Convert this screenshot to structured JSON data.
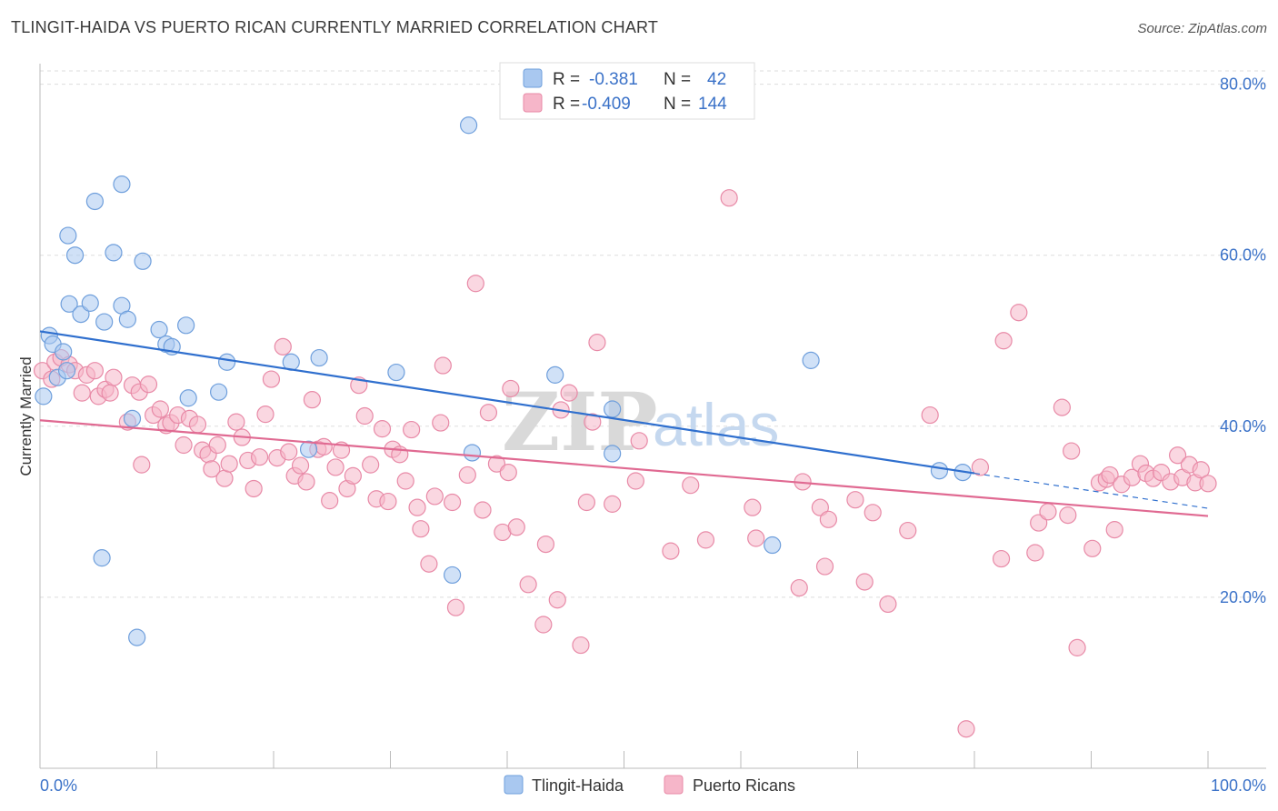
{
  "title": "TLINGIT-HAIDA VS PUERTO RICAN CURRENTLY MARRIED CORRELATION CHART",
  "source": "Source: ZipAtlas.com",
  "colors": {
    "blue_fill": "#a9c8f0",
    "blue_stroke": "#6f9fdc",
    "blue_line": "#2f6fce",
    "pink_fill": "#f6b6c9",
    "pink_stroke": "#e88aa7",
    "pink_line": "#e06a92",
    "accent_text": "#3b72c8",
    "grid": "#dddddd"
  },
  "legend": {
    "rows": [
      {
        "r_label": "R =",
        "r_value": "-0.381",
        "n_label": "N =",
        "n_value": "42"
      },
      {
        "r_label": "R =",
        "r_value": "-0.409",
        "n_label": "N =",
        "n_value": "144"
      }
    ]
  },
  "chart_data": {
    "type": "scatter",
    "title": "TLINGIT-HAIDA VS PUERTO RICAN CURRENTLY MARRIED CORRELATION CHART",
    "xlabel": "",
    "ylabel": "Currently Married",
    "xlim": [
      0,
      100
    ],
    "ylim": [
      0,
      84
    ],
    "x_tick_labels": [
      "0.0%",
      "100.0%"
    ],
    "y_ticks": [
      20,
      40,
      60,
      80
    ],
    "y_tick_labels": [
      "20.0%",
      "40.0%",
      "60.0%",
      "80.0%"
    ],
    "grid": true,
    "legend_position": "top-center",
    "bottom_legend": [
      "Tlingit-Haida",
      "Puerto Ricans"
    ],
    "watermark": "ZIPatlas",
    "series": [
      {
        "name": "Tlingit-Haida",
        "color": "#a9c8f0",
        "trend": {
          "x": [
            0,
            80
          ],
          "y": [
            51.1,
            34.5
          ],
          "dashed_extension": {
            "x": [
              80,
              100
            ],
            "y": [
              34.5,
              30.4
            ]
          }
        },
        "points": [
          {
            "x": 0.3,
            "y": 43.5
          },
          {
            "x": 0.8,
            "y": 50.6
          },
          {
            "x": 1.1,
            "y": 49.6
          },
          {
            "x": 1.5,
            "y": 45.7
          },
          {
            "x": 2.0,
            "y": 48.7
          },
          {
            "x": 2.3,
            "y": 46.5
          },
          {
            "x": 2.4,
            "y": 62.3
          },
          {
            "x": 3.0,
            "y": 60.0
          },
          {
            "x": 2.5,
            "y": 54.3
          },
          {
            "x": 3.5,
            "y": 53.1
          },
          {
            "x": 4.3,
            "y": 54.4
          },
          {
            "x": 4.7,
            "y": 66.3
          },
          {
            "x": 5.5,
            "y": 52.2
          },
          {
            "x": 6.3,
            "y": 60.3
          },
          {
            "x": 7.0,
            "y": 68.3
          },
          {
            "x": 7.0,
            "y": 54.1
          },
          {
            "x": 7.5,
            "y": 52.5
          },
          {
            "x": 7.9,
            "y": 40.9
          },
          {
            "x": 8.8,
            "y": 59.3
          },
          {
            "x": 10.2,
            "y": 51.3
          },
          {
            "x": 10.8,
            "y": 49.6
          },
          {
            "x": 11.3,
            "y": 49.3
          },
          {
            "x": 12.5,
            "y": 51.8
          },
          {
            "x": 12.7,
            "y": 43.3
          },
          {
            "x": 15.3,
            "y": 44.0
          },
          {
            "x": 16.0,
            "y": 47.5
          },
          {
            "x": 21.5,
            "y": 47.5
          },
          {
            "x": 23.0,
            "y": 37.3
          },
          {
            "x": 23.9,
            "y": 48.0
          },
          {
            "x": 30.5,
            "y": 46.3
          },
          {
            "x": 36.7,
            "y": 75.2
          },
          {
            "x": 44.1,
            "y": 46.0
          },
          {
            "x": 49.0,
            "y": 42.0
          },
          {
            "x": 66.0,
            "y": 47.7
          },
          {
            "x": 77.0,
            "y": 34.8
          },
          {
            "x": 79.0,
            "y": 34.6
          },
          {
            "x": 5.3,
            "y": 24.6
          },
          {
            "x": 8.3,
            "y": 15.3
          },
          {
            "x": 35.3,
            "y": 22.6
          },
          {
            "x": 49.0,
            "y": 36.8
          },
          {
            "x": 62.7,
            "y": 26.1
          },
          {
            "x": 37.0,
            "y": 36.9
          }
        ]
      },
      {
        "name": "Puerto Ricans",
        "color": "#f6b6c9",
        "trend": {
          "x": [
            0,
            100
          ],
          "y": [
            40.7,
            29.5
          ]
        },
        "points": [
          {
            "x": 0.2,
            "y": 46.5
          },
          {
            "x": 1.0,
            "y": 45.5
          },
          {
            "x": 1.3,
            "y": 47.5
          },
          {
            "x": 1.8,
            "y": 48.0
          },
          {
            "x": 2.5,
            "y": 47.2
          },
          {
            "x": 3.0,
            "y": 46.5
          },
          {
            "x": 3.6,
            "y": 43.9
          },
          {
            "x": 4.0,
            "y": 46.0
          },
          {
            "x": 4.7,
            "y": 46.5
          },
          {
            "x": 5.0,
            "y": 43.5
          },
          {
            "x": 5.6,
            "y": 44.3
          },
          {
            "x": 6.3,
            "y": 45.7
          },
          {
            "x": 6.0,
            "y": 43.9
          },
          {
            "x": 7.5,
            "y": 40.5
          },
          {
            "x": 7.9,
            "y": 44.8
          },
          {
            "x": 8.5,
            "y": 44.0
          },
          {
            "x": 8.7,
            "y": 35.5
          },
          {
            "x": 9.3,
            "y": 44.9
          },
          {
            "x": 9.7,
            "y": 41.3
          },
          {
            "x": 10.3,
            "y": 42.0
          },
          {
            "x": 10.8,
            "y": 40.1
          },
          {
            "x": 11.2,
            "y": 40.4
          },
          {
            "x": 11.8,
            "y": 41.3
          },
          {
            "x": 12.3,
            "y": 37.8
          },
          {
            "x": 12.8,
            "y": 40.9
          },
          {
            "x": 13.5,
            "y": 40.2
          },
          {
            "x": 13.9,
            "y": 37.2
          },
          {
            "x": 14.4,
            "y": 36.7
          },
          {
            "x": 14.7,
            "y": 35.0
          },
          {
            "x": 15.2,
            "y": 37.8
          },
          {
            "x": 15.8,
            "y": 33.9
          },
          {
            "x": 16.2,
            "y": 35.6
          },
          {
            "x": 16.8,
            "y": 40.5
          },
          {
            "x": 17.3,
            "y": 38.7
          },
          {
            "x": 17.8,
            "y": 36.0
          },
          {
            "x": 18.3,
            "y": 32.7
          },
          {
            "x": 18.8,
            "y": 36.4
          },
          {
            "x": 19.3,
            "y": 41.4
          },
          {
            "x": 19.8,
            "y": 45.5
          },
          {
            "x": 20.3,
            "y": 36.3
          },
          {
            "x": 20.8,
            "y": 49.3
          },
          {
            "x": 21.3,
            "y": 37.0
          },
          {
            "x": 21.8,
            "y": 34.2
          },
          {
            "x": 22.3,
            "y": 35.4
          },
          {
            "x": 22.8,
            "y": 33.5
          },
          {
            "x": 23.3,
            "y": 43.1
          },
          {
            "x": 23.8,
            "y": 37.3
          },
          {
            "x": 24.3,
            "y": 37.6
          },
          {
            "x": 24.8,
            "y": 31.3
          },
          {
            "x": 25.3,
            "y": 35.2
          },
          {
            "x": 25.8,
            "y": 37.2
          },
          {
            "x": 26.3,
            "y": 32.7
          },
          {
            "x": 26.8,
            "y": 34.2
          },
          {
            "x": 27.3,
            "y": 44.8
          },
          {
            "x": 27.8,
            "y": 41.2
          },
          {
            "x": 28.3,
            "y": 35.5
          },
          {
            "x": 28.8,
            "y": 31.5
          },
          {
            "x": 29.3,
            "y": 39.7
          },
          {
            "x": 29.8,
            "y": 31.2
          },
          {
            "x": 30.2,
            "y": 37.3
          },
          {
            "x": 30.8,
            "y": 36.7
          },
          {
            "x": 31.3,
            "y": 33.6
          },
          {
            "x": 31.8,
            "y": 39.6
          },
          {
            "x": 32.3,
            "y": 30.5
          },
          {
            "x": 32.6,
            "y": 28.0
          },
          {
            "x": 33.3,
            "y": 23.9
          },
          {
            "x": 33.8,
            "y": 31.8
          },
          {
            "x": 34.3,
            "y": 40.4
          },
          {
            "x": 34.5,
            "y": 47.1
          },
          {
            "x": 35.3,
            "y": 31.1
          },
          {
            "x": 35.6,
            "y": 18.8
          },
          {
            "x": 36.6,
            "y": 34.3
          },
          {
            "x": 37.3,
            "y": 56.7
          },
          {
            "x": 37.9,
            "y": 30.2
          },
          {
            "x": 38.4,
            "y": 41.6
          },
          {
            "x": 39.1,
            "y": 35.6
          },
          {
            "x": 39.6,
            "y": 27.6
          },
          {
            "x": 40.1,
            "y": 34.6
          },
          {
            "x": 40.3,
            "y": 44.4
          },
          {
            "x": 40.8,
            "y": 28.2
          },
          {
            "x": 41.8,
            "y": 21.5
          },
          {
            "x": 43.1,
            "y": 16.8
          },
          {
            "x": 43.3,
            "y": 26.2
          },
          {
            "x": 44.3,
            "y": 19.7
          },
          {
            "x": 44.6,
            "y": 41.9
          },
          {
            "x": 45.3,
            "y": 43.9
          },
          {
            "x": 46.3,
            "y": 14.4
          },
          {
            "x": 46.8,
            "y": 31.1
          },
          {
            "x": 47.3,
            "y": 40.5
          },
          {
            "x": 47.7,
            "y": 49.8
          },
          {
            "x": 49.0,
            "y": 30.9
          },
          {
            "x": 51.0,
            "y": 33.6
          },
          {
            "x": 51.3,
            "y": 38.3
          },
          {
            "x": 54.0,
            "y": 25.4
          },
          {
            "x": 55.7,
            "y": 33.1
          },
          {
            "x": 57.0,
            "y": 26.7
          },
          {
            "x": 59.0,
            "y": 66.7
          },
          {
            "x": 61.0,
            "y": 30.5
          },
          {
            "x": 61.3,
            "y": 26.9
          },
          {
            "x": 65.0,
            "y": 21.1
          },
          {
            "x": 65.3,
            "y": 33.5
          },
          {
            "x": 66.8,
            "y": 30.5
          },
          {
            "x": 67.2,
            "y": 23.6
          },
          {
            "x": 67.5,
            "y": 29.1
          },
          {
            "x": 69.8,
            "y": 31.4
          },
          {
            "x": 70.6,
            "y": 21.8
          },
          {
            "x": 71.3,
            "y": 29.9
          },
          {
            "x": 72.6,
            "y": 19.2
          },
          {
            "x": 74.3,
            "y": 27.8
          },
          {
            "x": 76.2,
            "y": 41.3
          },
          {
            "x": 79.3,
            "y": 4.6
          },
          {
            "x": 80.5,
            "y": 35.2
          },
          {
            "x": 82.3,
            "y": 24.5
          },
          {
            "x": 82.5,
            "y": 50.0
          },
          {
            "x": 83.8,
            "y": 53.3
          },
          {
            "x": 85.2,
            "y": 25.2
          },
          {
            "x": 85.5,
            "y": 28.7
          },
          {
            "x": 86.3,
            "y": 30.0
          },
          {
            "x": 87.5,
            "y": 42.2
          },
          {
            "x": 88.0,
            "y": 29.6
          },
          {
            "x": 88.3,
            "y": 37.1
          },
          {
            "x": 88.8,
            "y": 14.1
          },
          {
            "x": 90.1,
            "y": 25.7
          },
          {
            "x": 90.7,
            "y": 33.4
          },
          {
            "x": 91.3,
            "y": 33.8
          },
          {
            "x": 91.6,
            "y": 34.3
          },
          {
            "x": 92.0,
            "y": 27.9
          },
          {
            "x": 92.6,
            "y": 33.2
          },
          {
            "x": 93.5,
            "y": 34.0
          },
          {
            "x": 94.2,
            "y": 35.6
          },
          {
            "x": 94.7,
            "y": 34.5
          },
          {
            "x": 95.3,
            "y": 33.9
          },
          {
            "x": 96.0,
            "y": 34.6
          },
          {
            "x": 96.8,
            "y": 33.5
          },
          {
            "x": 97.4,
            "y": 36.6
          },
          {
            "x": 97.8,
            "y": 34.0
          },
          {
            "x": 98.4,
            "y": 35.5
          },
          {
            "x": 98.9,
            "y": 33.4
          },
          {
            "x": 99.4,
            "y": 34.9
          },
          {
            "x": 100.0,
            "y": 33.3
          }
        ]
      }
    ]
  }
}
